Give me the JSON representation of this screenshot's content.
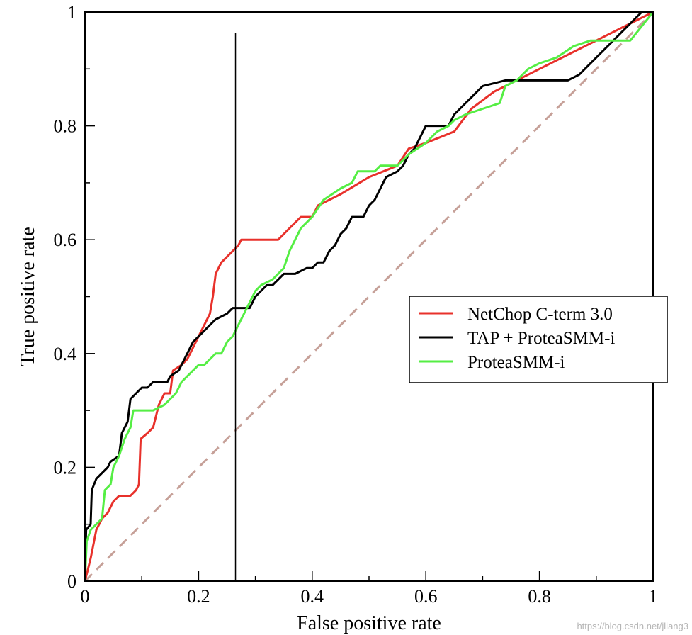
{
  "chart_data": {
    "type": "line",
    "xlabel": "False positive rate",
    "ylabel": "True positive rate",
    "xlim": [
      0,
      1
    ],
    "ylim": [
      0,
      1
    ],
    "x_ticks": [
      "0",
      "0.2",
      "0.4",
      "0.6",
      "0.8",
      "1"
    ],
    "y_ticks": [
      "0",
      "0.2",
      "0.4",
      "0.6",
      "0.8",
      "1"
    ],
    "grid": false,
    "legend_position": "right",
    "reference_vline_x": 0.265,
    "series": [
      {
        "name": "NetChop C-term 3.0",
        "color": "#e8312b",
        "points": [
          [
            0,
            0
          ],
          [
            0.01,
            0.04
          ],
          [
            0.02,
            0.09
          ],
          [
            0.03,
            0.11
          ],
          [
            0.04,
            0.12
          ],
          [
            0.05,
            0.14
          ],
          [
            0.06,
            0.15
          ],
          [
            0.08,
            0.15
          ],
          [
            0.09,
            0.16
          ],
          [
            0.095,
            0.17
          ],
          [
            0.098,
            0.25
          ],
          [
            0.11,
            0.26
          ],
          [
            0.12,
            0.27
          ],
          [
            0.13,
            0.31
          ],
          [
            0.14,
            0.33
          ],
          [
            0.15,
            0.33
          ],
          [
            0.155,
            0.37
          ],
          [
            0.17,
            0.38
          ],
          [
            0.18,
            0.39
          ],
          [
            0.19,
            0.41
          ],
          [
            0.2,
            0.43
          ],
          [
            0.21,
            0.45
          ],
          [
            0.22,
            0.47
          ],
          [
            0.225,
            0.5
          ],
          [
            0.23,
            0.54
          ],
          [
            0.24,
            0.56
          ],
          [
            0.25,
            0.57
          ],
          [
            0.26,
            0.58
          ],
          [
            0.27,
            0.59
          ],
          [
            0.275,
            0.6
          ],
          [
            0.3,
            0.6
          ],
          [
            0.34,
            0.6
          ],
          [
            0.35,
            0.61
          ],
          [
            0.36,
            0.62
          ],
          [
            0.37,
            0.63
          ],
          [
            0.38,
            0.64
          ],
          [
            0.4,
            0.64
          ],
          [
            0.41,
            0.66
          ],
          [
            0.43,
            0.67
          ],
          [
            0.45,
            0.68
          ],
          [
            0.5,
            0.71
          ],
          [
            0.55,
            0.73
          ],
          [
            0.57,
            0.76
          ],
          [
            0.6,
            0.77
          ],
          [
            0.65,
            0.79
          ],
          [
            0.68,
            0.83
          ],
          [
            0.72,
            0.86
          ],
          [
            0.8,
            0.9
          ],
          [
            0.9,
            0.95
          ],
          [
            1,
            1
          ]
        ]
      },
      {
        "name": "TAP + ProteaSMM-i",
        "color": "#000000",
        "points": [
          [
            0,
            0
          ],
          [
            0.002,
            0.09
          ],
          [
            0.01,
            0.1
          ],
          [
            0.012,
            0.16
          ],
          [
            0.02,
            0.18
          ],
          [
            0.03,
            0.19
          ],
          [
            0.04,
            0.2
          ],
          [
            0.045,
            0.21
          ],
          [
            0.06,
            0.22
          ],
          [
            0.065,
            0.26
          ],
          [
            0.07,
            0.27
          ],
          [
            0.075,
            0.28
          ],
          [
            0.08,
            0.32
          ],
          [
            0.09,
            0.33
          ],
          [
            0.1,
            0.34
          ],
          [
            0.11,
            0.34
          ],
          [
            0.12,
            0.35
          ],
          [
            0.145,
            0.35
          ],
          [
            0.15,
            0.36
          ],
          [
            0.165,
            0.37
          ],
          [
            0.17,
            0.38
          ],
          [
            0.175,
            0.39
          ],
          [
            0.18,
            0.4
          ],
          [
            0.185,
            0.41
          ],
          [
            0.19,
            0.42
          ],
          [
            0.2,
            0.43
          ],
          [
            0.21,
            0.44
          ],
          [
            0.22,
            0.45
          ],
          [
            0.23,
            0.46
          ],
          [
            0.25,
            0.47
          ],
          [
            0.26,
            0.48
          ],
          [
            0.29,
            0.48
          ],
          [
            0.3,
            0.5
          ],
          [
            0.31,
            0.51
          ],
          [
            0.32,
            0.52
          ],
          [
            0.33,
            0.52
          ],
          [
            0.34,
            0.53
          ],
          [
            0.35,
            0.54
          ],
          [
            0.37,
            0.54
          ],
          [
            0.39,
            0.55
          ],
          [
            0.4,
            0.55
          ],
          [
            0.41,
            0.56
          ],
          [
            0.42,
            0.56
          ],
          [
            0.43,
            0.58
          ],
          [
            0.44,
            0.59
          ],
          [
            0.45,
            0.61
          ],
          [
            0.46,
            0.62
          ],
          [
            0.47,
            0.64
          ],
          [
            0.49,
            0.64
          ],
          [
            0.5,
            0.66
          ],
          [
            0.51,
            0.67
          ],
          [
            0.52,
            0.69
          ],
          [
            0.53,
            0.71
          ],
          [
            0.55,
            0.72
          ],
          [
            0.56,
            0.73
          ],
          [
            0.57,
            0.75
          ],
          [
            0.58,
            0.76
          ],
          [
            0.59,
            0.78
          ],
          [
            0.6,
            0.8
          ],
          [
            0.64,
            0.8
          ],
          [
            0.65,
            0.82
          ],
          [
            0.67,
            0.84
          ],
          [
            0.68,
            0.85
          ],
          [
            0.69,
            0.86
          ],
          [
            0.7,
            0.87
          ],
          [
            0.74,
            0.88
          ],
          [
            0.85,
            0.88
          ],
          [
            0.87,
            0.89
          ],
          [
            0.9,
            0.92
          ],
          [
            0.93,
            0.95
          ],
          [
            0.95,
            0.97
          ],
          [
            0.97,
            0.99
          ],
          [
            0.98,
            1
          ],
          [
            1,
            1
          ]
        ]
      },
      {
        "name": "ProteaSMM-i",
        "color": "#55ee44",
        "points": [
          [
            0,
            0
          ],
          [
            0.003,
            0.07
          ],
          [
            0.01,
            0.09
          ],
          [
            0.02,
            0.1
          ],
          [
            0.03,
            0.11
          ],
          [
            0.035,
            0.16
          ],
          [
            0.045,
            0.17
          ],
          [
            0.05,
            0.2
          ],
          [
            0.06,
            0.22
          ],
          [
            0.07,
            0.25
          ],
          [
            0.08,
            0.27
          ],
          [
            0.085,
            0.3
          ],
          [
            0.12,
            0.3
          ],
          [
            0.14,
            0.31
          ],
          [
            0.15,
            0.32
          ],
          [
            0.16,
            0.33
          ],
          [
            0.17,
            0.35
          ],
          [
            0.19,
            0.37
          ],
          [
            0.2,
            0.38
          ],
          [
            0.21,
            0.38
          ],
          [
            0.23,
            0.4
          ],
          [
            0.24,
            0.4
          ],
          [
            0.25,
            0.42
          ],
          [
            0.26,
            0.43
          ],
          [
            0.27,
            0.45
          ],
          [
            0.28,
            0.47
          ],
          [
            0.29,
            0.49
          ],
          [
            0.3,
            0.51
          ],
          [
            0.31,
            0.52
          ],
          [
            0.33,
            0.53
          ],
          [
            0.35,
            0.55
          ],
          [
            0.36,
            0.58
          ],
          [
            0.37,
            0.6
          ],
          [
            0.38,
            0.62
          ],
          [
            0.4,
            0.64
          ],
          [
            0.42,
            0.67
          ],
          [
            0.45,
            0.69
          ],
          [
            0.47,
            0.7
          ],
          [
            0.48,
            0.72
          ],
          [
            0.51,
            0.72
          ],
          [
            0.52,
            0.73
          ],
          [
            0.55,
            0.73
          ],
          [
            0.57,
            0.75
          ],
          [
            0.6,
            0.77
          ],
          [
            0.62,
            0.79
          ],
          [
            0.64,
            0.8
          ],
          [
            0.65,
            0.81
          ],
          [
            0.67,
            0.82
          ],
          [
            0.7,
            0.83
          ],
          [
            0.73,
            0.84
          ],
          [
            0.74,
            0.87
          ],
          [
            0.76,
            0.88
          ],
          [
            0.78,
            0.9
          ],
          [
            0.8,
            0.91
          ],
          [
            0.83,
            0.92
          ],
          [
            0.86,
            0.94
          ],
          [
            0.89,
            0.95
          ],
          [
            0.92,
            0.95
          ],
          [
            0.96,
            0.95
          ],
          [
            1,
            1
          ]
        ]
      },
      {
        "name": "",
        "color": "#c6a098",
        "dashed": true,
        "points": [
          [
            0,
            0
          ],
          [
            1,
            1
          ]
        ]
      }
    ]
  },
  "watermark": "https://blog.csdn.net/jliang3"
}
